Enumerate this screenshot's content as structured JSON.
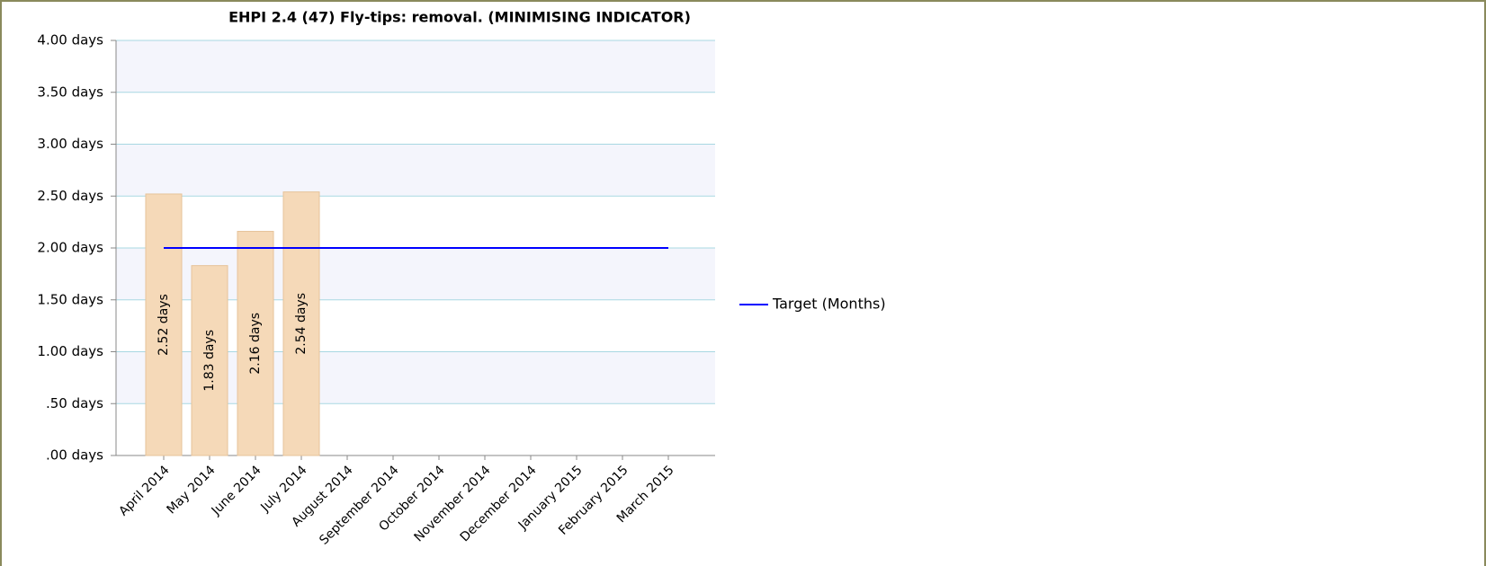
{
  "chart_data": {
    "type": "bar",
    "title": "EHPI 2.4 (47) Fly-tips: removal. (MINIMISING INDICATOR)",
    "categories": [
      "April 2014",
      "May 2014",
      "June 2014",
      "July 2014",
      "August 2014",
      "September 2014",
      "October 2014",
      "November 2014",
      "December 2014",
      "January 2015",
      "February 2015",
      "March 2015"
    ],
    "series": [
      {
        "type": "bar",
        "color": "#f5d9b8",
        "values": [
          2.52,
          1.83,
          2.16,
          2.54,
          null,
          null,
          null,
          null,
          null,
          null,
          null,
          null
        ],
        "value_labels": [
          "2.52 days",
          "1.83 days",
          "2.16 days",
          "2.54 days",
          null,
          null,
          null,
          null,
          null,
          null,
          null,
          null
        ]
      },
      {
        "type": "line",
        "name": "Target (Months)",
        "color": "#0000ff",
        "values": [
          2,
          2,
          2,
          2,
          2,
          2,
          2,
          2,
          2,
          2,
          2,
          2
        ]
      }
    ],
    "ylim": [
      0,
      4
    ],
    "yticks": [
      {
        "value": 0,
        "label": ".00 days"
      },
      {
        "value": 0.5,
        "label": ".50 days"
      },
      {
        "value": 1,
        "label": "1.00 days"
      },
      {
        "value": 1.5,
        "label": "1.50 days"
      },
      {
        "value": 2,
        "label": "2.00 days"
      },
      {
        "value": 2.5,
        "label": "2.50 days"
      },
      {
        "value": 3,
        "label": "3.00 days"
      },
      {
        "value": 3.5,
        "label": "3.50 days"
      },
      {
        "value": 4,
        "label": "4.00 days"
      }
    ],
    "grid": true,
    "legend": "right"
  }
}
